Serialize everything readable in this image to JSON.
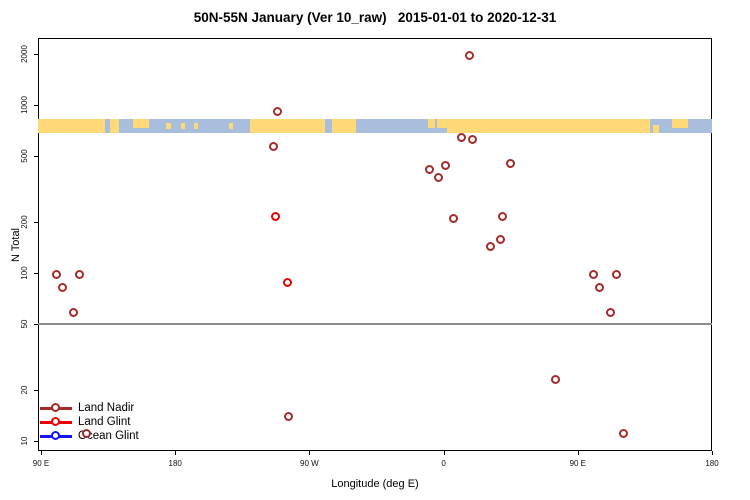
{
  "title": "50N-55N January (Ver 10_raw)   2015-01-01 to 2020-12-31",
  "axes": {
    "x": {
      "label": "Longitude (deg E)",
      "ticks": [
        {
          "L": 90,
          "label": "90 E"
        },
        {
          "L": 180,
          "label": "180"
        },
        {
          "L": 270,
          "label": "90 W"
        },
        {
          "L": 360,
          "label": "0"
        },
        {
          "L": 450,
          "label": "90 E"
        },
        {
          "L": 540,
          "label": "180"
        }
      ]
    },
    "y": {
      "label": "N Total",
      "scale": "log",
      "ticks": [
        2000,
        1000,
        500,
        200,
        100,
        50,
        20,
        10
      ]
    }
  },
  "colors": {
    "land_nadir": "#A52A2A",
    "land_glint": "#EE0000",
    "ocean_glint": "#1414EE",
    "strip_land": "#FFD978",
    "strip_ocean": "#A8BEDC",
    "reference_line": "#8C8C8C",
    "axis": "#000000"
  },
  "legend": [
    {
      "label": "Land Nadir",
      "series": "land_nadir"
    },
    {
      "label": "Land Glint",
      "series": "land_glint"
    },
    {
      "label": "Ocean Glint",
      "series": "ocean_glint"
    }
  ],
  "reference_line": {
    "y_value": 50
  },
  "map_strip": {
    "description": "land/ocean map band for 50N-55N latitude strip",
    "land_segments": [
      {
        "f0": 0.0,
        "f1": 0.0994,
        "h": "full",
        "name": "siberia"
      },
      {
        "f0": 0.107,
        "f1": 0.12,
        "h": "full",
        "name": "sakhalin"
      },
      {
        "f0": 0.141,
        "f1": 0.165,
        "h": "top",
        "name": "kamchatka-west"
      },
      {
        "f0": 0.19,
        "f1": 0.197,
        "h": "mid",
        "name": "aleutians-1"
      },
      {
        "f0": 0.212,
        "f1": 0.218,
        "h": "mid",
        "name": "aleutians-2"
      },
      {
        "f0": 0.232,
        "f1": 0.238,
        "h": "mid",
        "name": "aleutians-3"
      },
      {
        "f0": 0.283,
        "f1": 0.289,
        "h": "mid",
        "name": "alaska-peninsula"
      },
      {
        "f0": 0.3145,
        "f1": 0.4258,
        "h": "full",
        "name": "north-america"
      },
      {
        "f0": 0.4362,
        "f1": 0.4718,
        "h": "full",
        "name": "labrador"
      },
      {
        "f0": 0.5786,
        "f1": 0.589,
        "h": "top",
        "name": "ireland"
      },
      {
        "f0": 0.592,
        "f1": 0.6069,
        "h": "top",
        "name": "britain"
      },
      {
        "f0": 0.6069,
        "f1": 0.908,
        "h": "full",
        "name": "eurasia"
      },
      {
        "f0": 0.9125,
        "f1": 0.9214,
        "h": "bottom",
        "name": "island"
      },
      {
        "f0": 0.9407,
        "f1": 0.9644,
        "h": "top",
        "name": "kamchatka-east"
      }
    ]
  },
  "chart_data": {
    "type": "scatter",
    "title": "50N-55N January (Ver 10_raw)   2015-01-01 to 2020-12-31",
    "xlabel": "Longitude (deg E)",
    "ylabel": "N Total",
    "y_scale": "log",
    "ylim": [
      8.7,
      2500
    ],
    "x_axis_unwrapped_deg": [
      88,
      540
    ],
    "wrap_note": "x axis spans 90E eastward around the globe to 180; points with lon 90E-180E are plotted at both ends",
    "series": [
      {
        "name": "Land Nadir",
        "color_key": "land_nadir",
        "points": [
          {
            "lon": 101,
            "n": 97
          },
          {
            "lon": 116,
            "n": 97
          },
          {
            "lon": 105,
            "n": 81
          },
          {
            "lon": 112,
            "n": 58
          },
          {
            "lon": 121,
            "n": 11
          },
          {
            "lon": -111,
            "n": 910
          },
          {
            "lon": -113.5,
            "n": 565
          },
          {
            "lon": -103.7,
            "n": 14
          },
          {
            "lon": 17.7,
            "n": 1970
          },
          {
            "lon": 12.6,
            "n": 640
          },
          {
            "lon": 20,
            "n": 620
          },
          {
            "lon": -9.3,
            "n": 410
          },
          {
            "lon": 1.8,
            "n": 435
          },
          {
            "lon": -2.9,
            "n": 370
          },
          {
            "lon": 45,
            "n": 445
          },
          {
            "lon": 6.8,
            "n": 210
          },
          {
            "lon": 39.9,
            "n": 216
          },
          {
            "lon": 38.5,
            "n": 157
          },
          {
            "lon": 31.8,
            "n": 142
          },
          {
            "lon": 75.4,
            "n": 23
          }
        ]
      },
      {
        "name": "Land Glint",
        "color_key": "land_glint",
        "points": [
          {
            "lon": -112.4,
            "n": 215
          },
          {
            "lon": -104.4,
            "n": 87
          }
        ]
      },
      {
        "name": "Ocean Glint",
        "color_key": "ocean_glint",
        "points": []
      }
    ]
  }
}
